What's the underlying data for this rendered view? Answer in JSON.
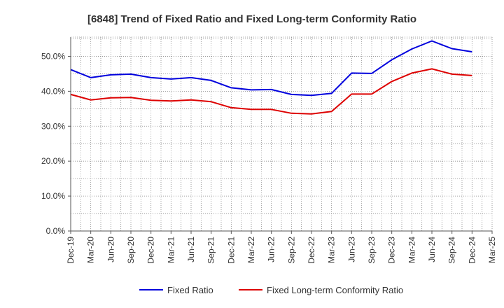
{
  "chart_data": {
    "type": "line",
    "title": "[6848]  Trend of Fixed Ratio and Fixed Long-term Conformity Ratio",
    "xlabel": "",
    "ylabel": "",
    "ylim": [
      0,
      55.5
    ],
    "yticks": [
      0,
      10,
      20,
      30,
      40,
      50
    ],
    "ytick_labels": [
      "0.0%",
      "10.0%",
      "20.0%",
      "30.0%",
      "40.0%",
      "50.0%"
    ],
    "categories": [
      "Dec-19",
      "Mar-20",
      "Jun-20",
      "Sep-20",
      "Dec-20",
      "Mar-21",
      "Jun-21",
      "Sep-21",
      "Dec-21",
      "Mar-22",
      "Jun-22",
      "Sep-22",
      "Dec-22",
      "Mar-23",
      "Jun-23",
      "Sep-23",
      "Dec-23",
      "Mar-24",
      "Jun-24",
      "Sep-24",
      "Dec-24",
      "Mar-25"
    ],
    "grid": true,
    "legend_position": "bottom",
    "series": [
      {
        "name": "Fixed Ratio",
        "color": "#0000dd",
        "values": [
          46.2,
          43.9,
          44.7,
          44.9,
          43.9,
          43.5,
          43.9,
          43.1,
          41.0,
          40.4,
          40.5,
          39.1,
          38.8,
          39.4,
          45.2,
          45.1,
          49.0,
          52.1,
          54.4,
          52.2,
          51.3,
          null
        ]
      },
      {
        "name": "Fixed Long-term Conformity Ratio",
        "color": "#dd0000",
        "values": [
          39.1,
          37.5,
          38.1,
          38.2,
          37.4,
          37.2,
          37.5,
          37.0,
          35.3,
          34.8,
          34.8,
          33.7,
          33.5,
          34.2,
          39.2,
          39.2,
          42.8,
          45.2,
          46.4,
          44.9,
          44.5,
          null
        ]
      }
    ]
  }
}
